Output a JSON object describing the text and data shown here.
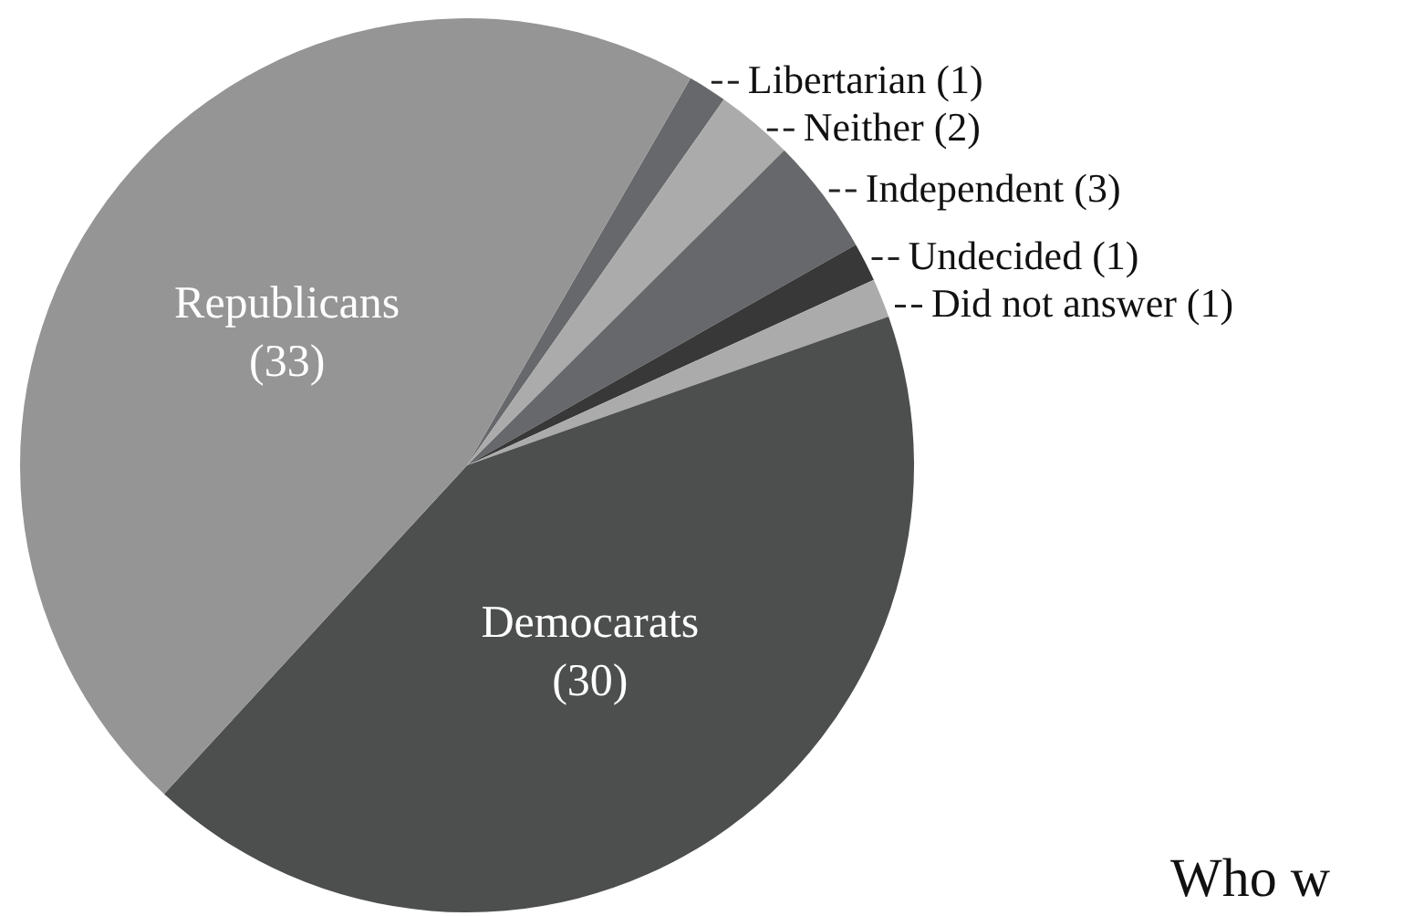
{
  "chart_data": {
    "type": "pie",
    "categories": [
      "Libertarian",
      "Neither",
      "Independent",
      "Undecided",
      "Did not answer",
      "Democarats",
      "Republicans"
    ],
    "values": [
      1,
      2,
      3,
      1,
      1,
      30,
      33
    ],
    "value_labels": [
      "(1)",
      "(2)",
      "(3)",
      "(1)",
      "(1)",
      "(30)",
      "(33)"
    ],
    "colors": [
      "#67686b",
      "#ababab",
      "#67686b",
      "#383838",
      "#ababab",
      "#4d4e4e",
      "#959595"
    ],
    "annotations": [
      "Who w"
    ]
  }
}
